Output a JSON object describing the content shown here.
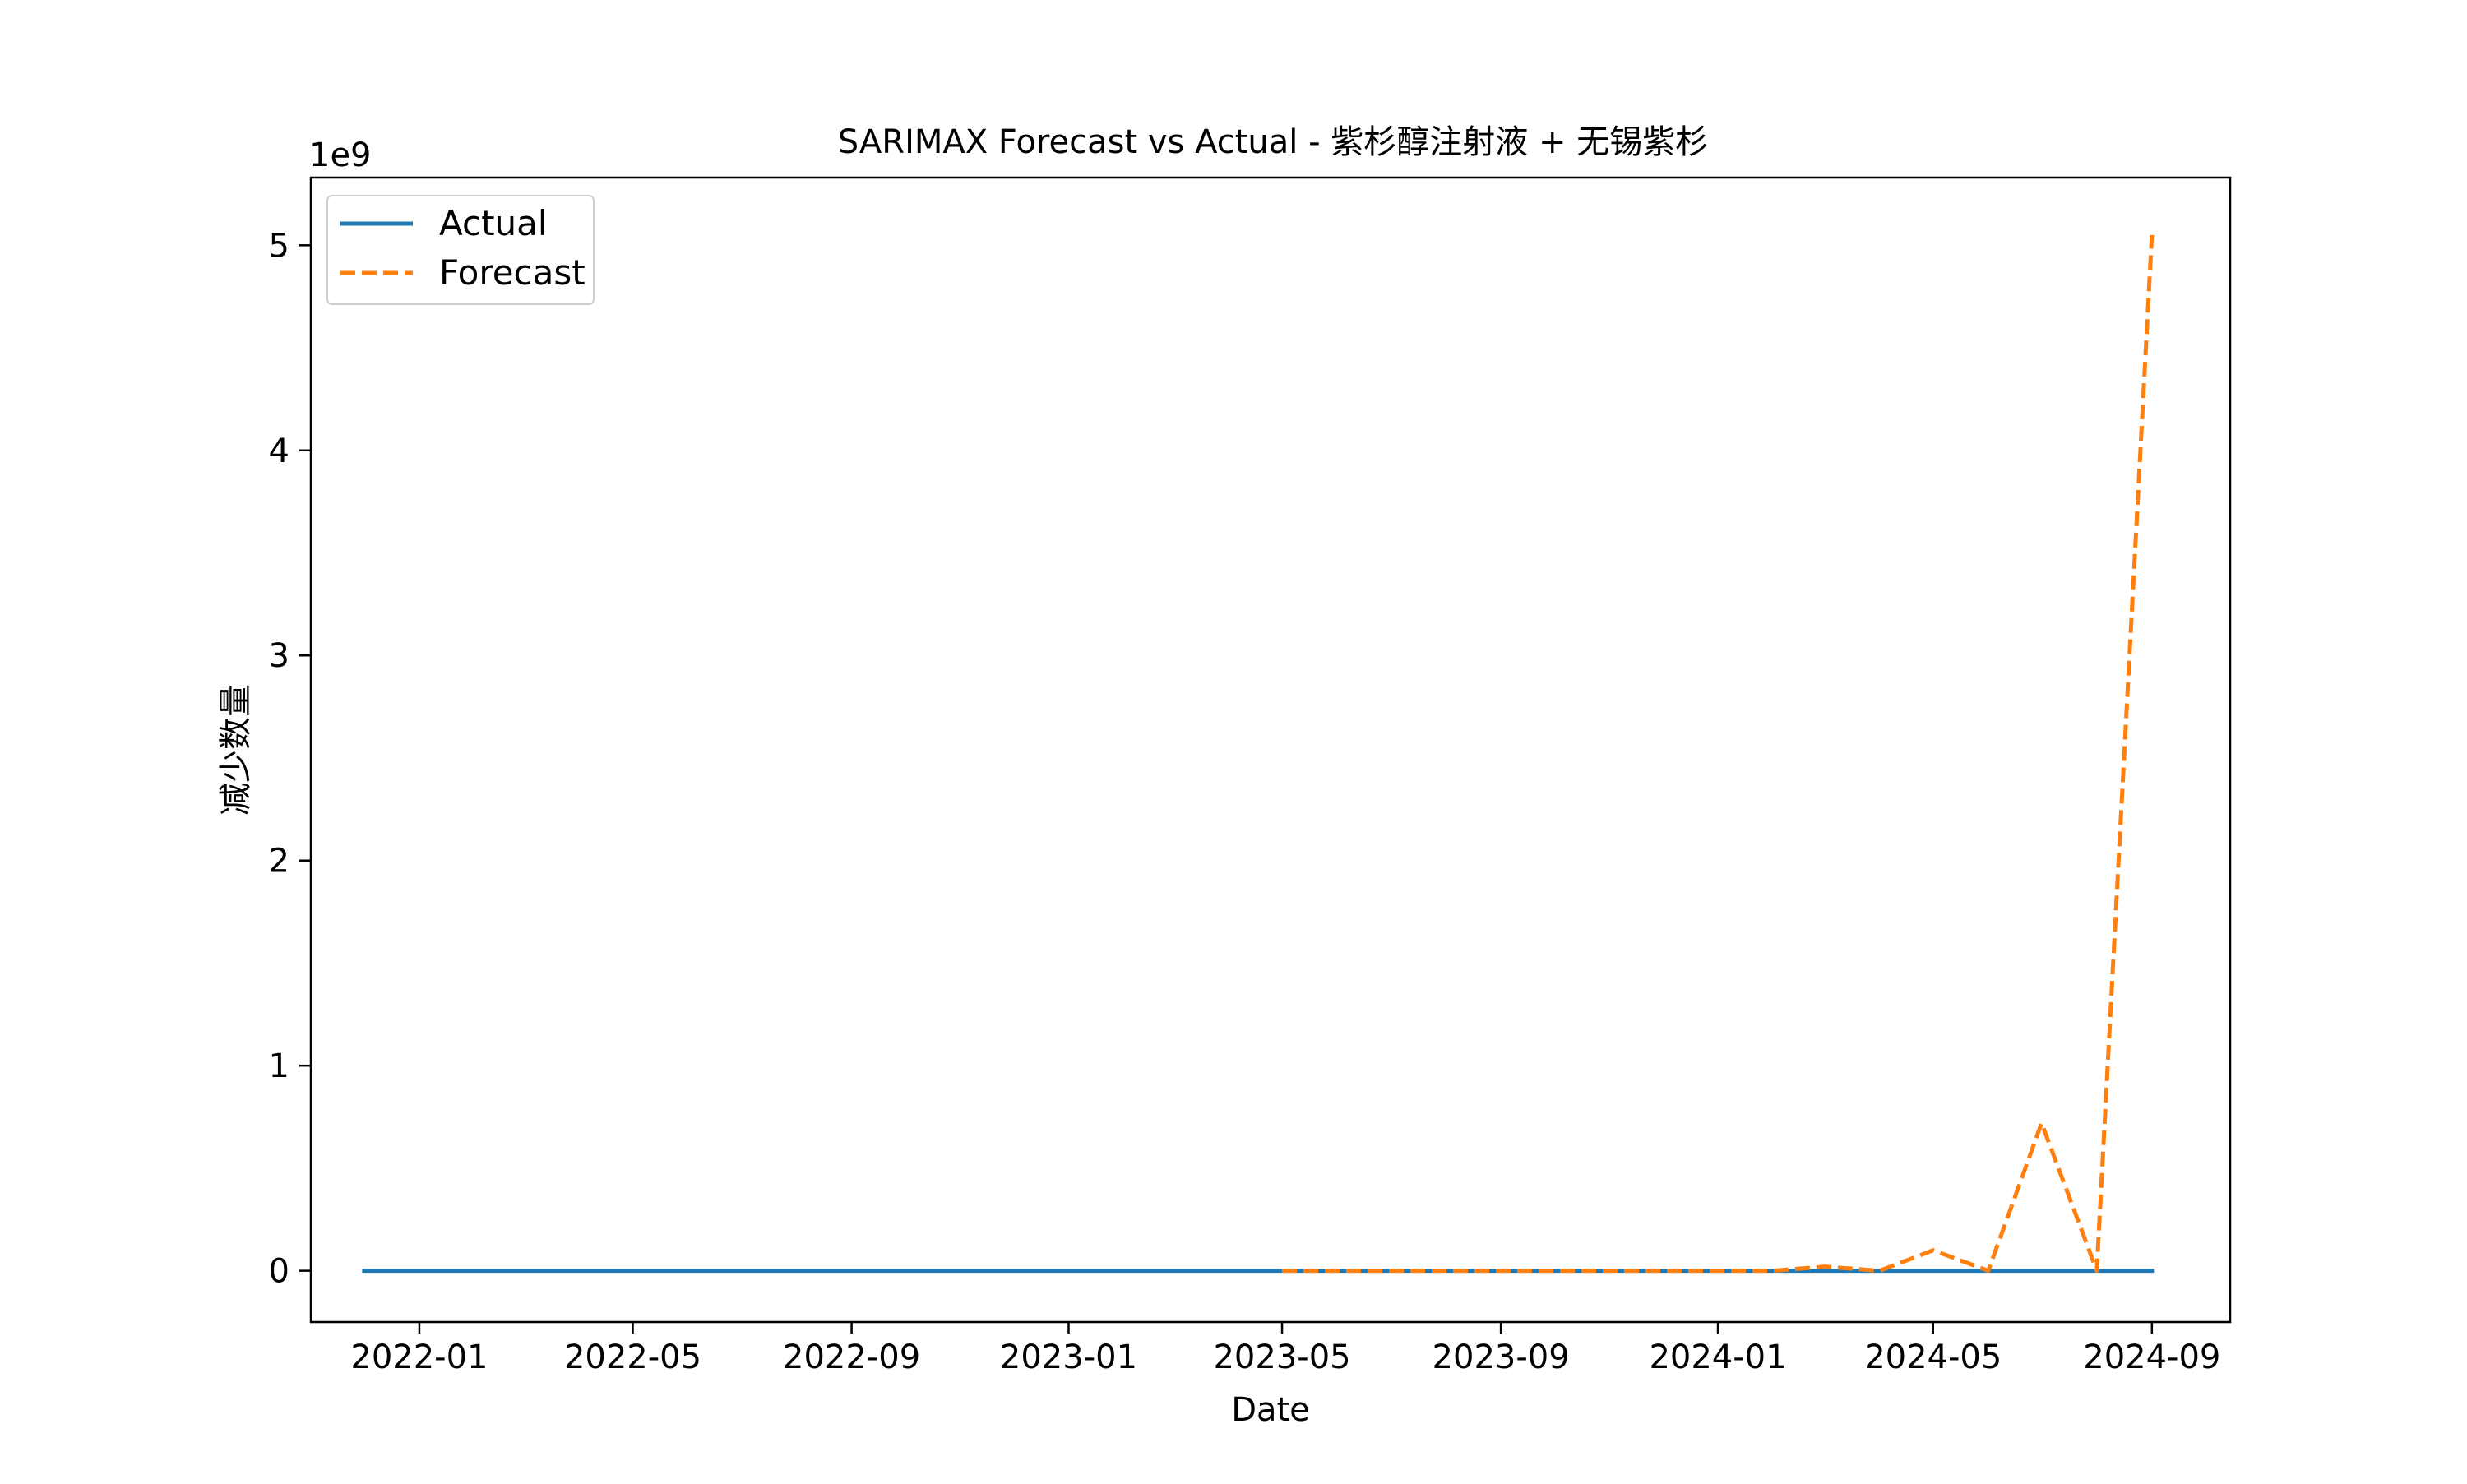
{
  "chart_data": {
    "type": "line",
    "title": "SARIMAX Forecast vs Actual - 紫杉醇注射液 + 无锡紫杉",
    "xlabel": "Date",
    "ylabel": "减少数量",
    "y_offset_label": "1e9",
    "y_scale_factor": 1000000000,
    "xlim": [
      "2021-11-01",
      "2024-10-15"
    ],
    "ylim": [
      -250000000,
      5330000000
    ],
    "x_ticks": [
      "2022-01",
      "2022-05",
      "2022-09",
      "2023-01",
      "2023-05",
      "2023-09",
      "2024-01",
      "2024-05",
      "2024-09"
    ],
    "y_ticks": [
      0,
      1,
      2,
      3,
      4,
      5
    ],
    "grid": false,
    "legend_position": "top-left",
    "series": [
      {
        "name": "Actual",
        "color": "#1f77b4",
        "style": "solid",
        "points": [
          [
            "2021-12-01",
            0
          ],
          [
            "2022-01-01",
            0
          ],
          [
            "2022-02-01",
            0
          ],
          [
            "2022-03-01",
            0
          ],
          [
            "2022-04-01",
            0
          ],
          [
            "2022-05-01",
            0
          ],
          [
            "2022-06-01",
            0
          ],
          [
            "2022-07-01",
            0
          ],
          [
            "2022-08-01",
            0
          ],
          [
            "2022-09-01",
            0
          ],
          [
            "2022-10-01",
            0
          ],
          [
            "2022-11-01",
            0
          ],
          [
            "2022-12-01",
            0
          ],
          [
            "2023-01-01",
            0
          ],
          [
            "2023-02-01",
            0
          ],
          [
            "2023-03-01",
            0
          ],
          [
            "2023-04-01",
            0
          ],
          [
            "2023-05-01",
            0
          ],
          [
            "2023-06-01",
            0
          ],
          [
            "2023-07-01",
            0
          ],
          [
            "2023-08-01",
            0
          ],
          [
            "2023-09-01",
            0
          ],
          [
            "2023-10-01",
            0
          ],
          [
            "2023-11-01",
            0
          ],
          [
            "2023-12-01",
            0
          ],
          [
            "2024-01-01",
            0
          ],
          [
            "2024-02-01",
            0
          ],
          [
            "2024-03-01",
            0
          ],
          [
            "2024-04-01",
            0
          ],
          [
            "2024-05-01",
            0
          ],
          [
            "2024-06-01",
            0
          ],
          [
            "2024-07-01",
            0
          ],
          [
            "2024-08-01",
            0
          ],
          [
            "2024-09-01",
            0
          ]
        ]
      },
      {
        "name": "Forecast",
        "color": "#ff7f0e",
        "style": "dashed",
        "points": [
          [
            "2023-05-01",
            0
          ],
          [
            "2023-06-01",
            0
          ],
          [
            "2023-07-01",
            0
          ],
          [
            "2023-08-01",
            0
          ],
          [
            "2023-09-01",
            0
          ],
          [
            "2023-10-01",
            0
          ],
          [
            "2023-11-01",
            0
          ],
          [
            "2023-12-01",
            0
          ],
          [
            "2024-01-01",
            0
          ],
          [
            "2024-02-01",
            0
          ],
          [
            "2024-03-01",
            20000000
          ],
          [
            "2024-04-01",
            0
          ],
          [
            "2024-05-01",
            100000000
          ],
          [
            "2024-06-01",
            0
          ],
          [
            "2024-07-01",
            720000000
          ],
          [
            "2024-08-01",
            0
          ],
          [
            "2024-09-01",
            5050000000
          ]
        ]
      }
    ]
  }
}
